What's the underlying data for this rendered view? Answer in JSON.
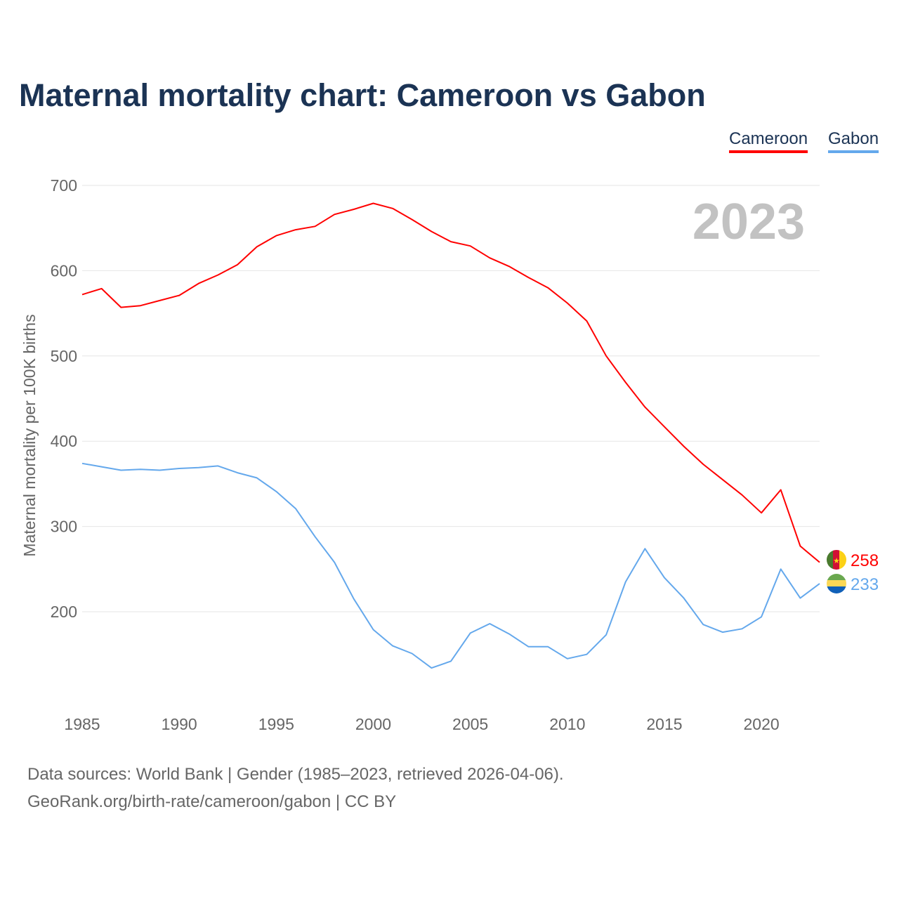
{
  "title": "Maternal mortality chart: Cameroon vs Gabon",
  "legend": [
    {
      "label": "Cameroon",
      "color": "#ff0000"
    },
    {
      "label": "Gabon",
      "color": "#64a8ec"
    }
  ],
  "sources": [
    "Data sources: World Bank | Gender (1985–2023, retrieved 2026-04-06).",
    "GeoRank.org/birth-rate/cameroon/gabon | CC BY"
  ],
  "chart_data": {
    "type": "line",
    "title": "Maternal mortality chart: Cameroon vs Gabon",
    "xlabel": "",
    "ylabel": "Maternal mortality per 100K births",
    "year_label": "2023",
    "xlim": [
      1985,
      2023
    ],
    "ylim": [
      100,
      700
    ],
    "x_ticks": [
      1985,
      1990,
      1995,
      2000,
      2005,
      2010,
      2015,
      2020
    ],
    "y_ticks": [
      200,
      300,
      400,
      500,
      600,
      700
    ],
    "grid": true,
    "legend_position": "top-right",
    "x": [
      1985,
      1986,
      1987,
      1988,
      1989,
      1990,
      1991,
      1992,
      1993,
      1994,
      1995,
      1996,
      1997,
      1998,
      1999,
      2000,
      2001,
      2002,
      2003,
      2004,
      2005,
      2006,
      2007,
      2008,
      2009,
      2010,
      2011,
      2012,
      2013,
      2014,
      2015,
      2016,
      2017,
      2018,
      2019,
      2020,
      2021,
      2022,
      2023
    ],
    "series": [
      {
        "name": "Cameroon",
        "color": "#ff0000",
        "end_label": "258",
        "values": [
          572,
          579,
          557,
          559,
          565,
          571,
          585,
          595,
          607,
          628,
          641,
          648,
          652,
          666,
          672,
          679,
          673,
          660,
          646,
          634,
          629,
          615,
          605,
          592,
          580,
          562,
          541,
          500,
          469,
          440,
          417,
          394,
          373,
          355,
          337,
          316,
          343,
          277,
          258
        ]
      },
      {
        "name": "Gabon",
        "color": "#64a8ec",
        "end_label": "233",
        "values": [
          374,
          370,
          366,
          367,
          366,
          368,
          369,
          371,
          363,
          357,
          341,
          321,
          288,
          258,
          215,
          179,
          160,
          151,
          134,
          142,
          175,
          186,
          174,
          159,
          159,
          145,
          150,
          173,
          235,
          274,
          240,
          216,
          185,
          176,
          180,
          194,
          250,
          216,
          233
        ]
      }
    ]
  }
}
